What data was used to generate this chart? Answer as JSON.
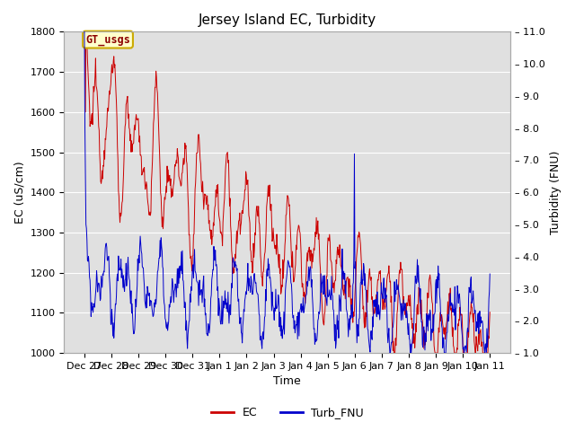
{
  "title": "Jersey Island EC, Turbidity",
  "xlabel": "Time",
  "ylabel_left": "EC (uS/cm)",
  "ylabel_right": "Turbidity (FNU)",
  "ylim_left": [
    1000,
    1800
  ],
  "ylim_right": [
    1.0,
    11.0
  ],
  "yticks_left": [
    1000,
    1100,
    1200,
    1300,
    1400,
    1500,
    1600,
    1700,
    1800
  ],
  "yticks_right": [
    1.0,
    2.0,
    3.0,
    4.0,
    5.0,
    6.0,
    7.0,
    8.0,
    9.0,
    10.0,
    11.0
  ],
  "fig_bg_color": "#ffffff",
  "plot_bg_color": "#e0e0e0",
  "ec_color": "#cc0000",
  "turb_color": "#0000cc",
  "annotation_text": "GT_usgs",
  "annotation_bg": "#ffffcc",
  "annotation_border": "#ccaa00",
  "legend_ec": "EC",
  "legend_turb": "Turb_FNU",
  "grid_color": "#ffffff",
  "title_fontsize": 11,
  "label_fontsize": 9,
  "tick_fontsize": 8
}
